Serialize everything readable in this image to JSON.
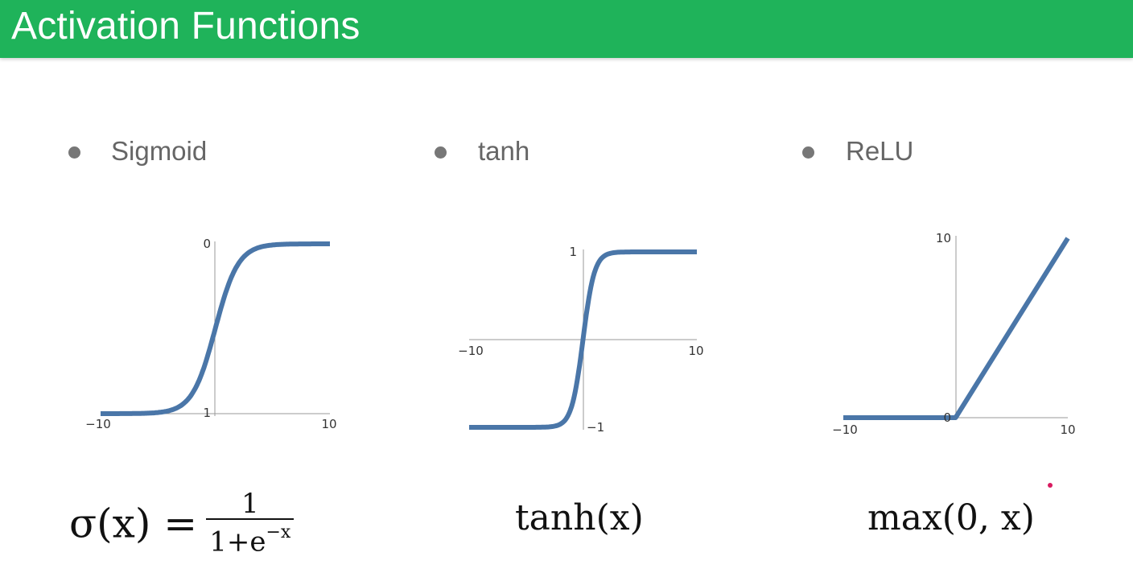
{
  "slide": {
    "title": "Activation Functions",
    "title_bar_color": "#1fb35a",
    "title_text_color": "#ffffff",
    "bullet_color": "#777777",
    "label_color": "#666666",
    "annotation_dot_color": "#d81b60"
  },
  "bullets": [
    {
      "label": "Sigmoid"
    },
    {
      "label": "tanh"
    },
    {
      "label": "ReLU"
    }
  ],
  "formulas": {
    "sigmoid": {
      "lhs": "σ(x) =",
      "numerator": "1",
      "denominator_base": "1+e",
      "denominator_exp": "−x"
    },
    "tanh": "tanh(x)",
    "relu": "max(0, x)"
  },
  "chart_data": [
    {
      "type": "line",
      "name": "sigmoid",
      "function": "sigmoid",
      "xlim": [
        -10,
        10
      ],
      "ylim": [
        0,
        1
      ],
      "x_tick_labels": [
        "−10",
        "10"
      ],
      "y_tick_labels": [
        "0",
        "1"
      ],
      "line_color": "#4a76a8",
      "x": [
        -10,
        -8,
        -6,
        -5,
        -4,
        -3,
        -2,
        -1,
        0,
        1,
        2,
        3,
        4,
        5,
        6,
        8,
        10
      ],
      "y": [
        5e-05,
        0.0003,
        0.0025,
        0.0067,
        0.018,
        0.047,
        0.119,
        0.269,
        0.5,
        0.731,
        0.881,
        0.953,
        0.982,
        0.993,
        0.9975,
        0.9997,
        0.99995
      ],
      "grid": false
    },
    {
      "type": "line",
      "name": "tanh",
      "function": "tanh",
      "xlim": [
        -10,
        10
      ],
      "ylim": [
        -1,
        1
      ],
      "x_tick_labels": [
        "−10",
        "10"
      ],
      "y_tick_labels": [
        "1",
        "−1"
      ],
      "line_color": "#4a76a8",
      "x": [
        -10,
        -5,
        -3,
        -2,
        -1.5,
        -1,
        -0.5,
        0,
        0.5,
        1,
        1.5,
        2,
        3,
        5,
        10
      ],
      "y": [
        -1,
        -0.9999,
        -0.995,
        -0.964,
        -0.905,
        -0.762,
        -0.462,
        0,
        0.462,
        0.762,
        0.905,
        0.964,
        0.995,
        0.9999,
        1
      ],
      "grid": false
    },
    {
      "type": "line",
      "name": "relu",
      "function": "relu",
      "xlim": [
        -10,
        10
      ],
      "ylim": [
        0,
        10
      ],
      "x_tick_labels": [
        "−10",
        "10"
      ],
      "y_tick_labels": [
        "10",
        "0"
      ],
      "line_color": "#4a76a8",
      "x": [
        -10,
        0,
        10
      ],
      "y": [
        0,
        0,
        10
      ],
      "grid": false
    }
  ]
}
